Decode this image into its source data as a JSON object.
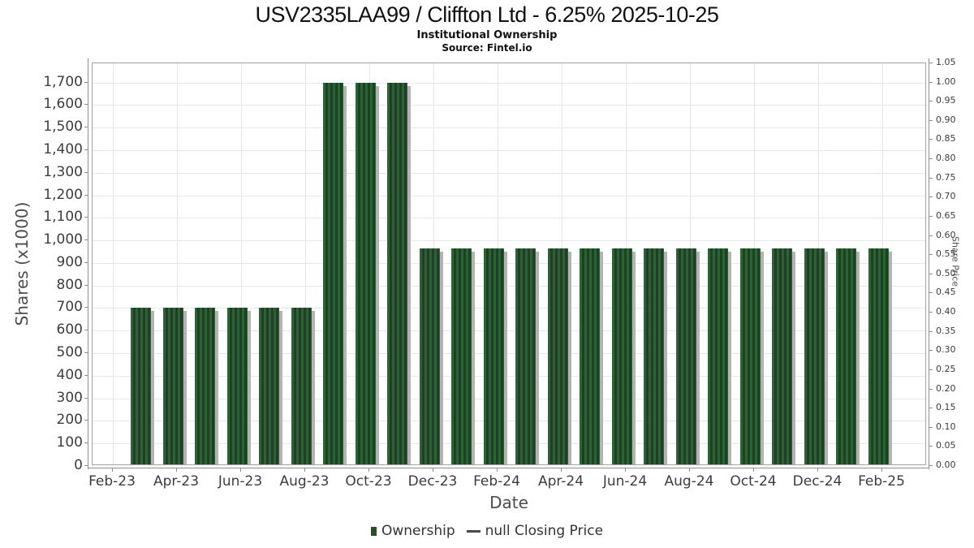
{
  "header": {
    "title": "USV2335LAA99 / Cliffton Ltd - 6.25% 2025-10-25",
    "subtitle": "Institutional Ownership",
    "source": "Source: Fintel.io"
  },
  "chart_data": {
    "type": "bar",
    "title": "USV2335LAA99 / Cliffton Ltd - 6.25% 2025-10-25",
    "subtitle": "Institutional Ownership",
    "source": "Source: Fintel.io",
    "categories": [
      "Mar-23",
      "Apr-23",
      "May-23",
      "Jun-23",
      "Jul-23",
      "Aug-23",
      "Sep-23",
      "Oct-23",
      "Nov-23",
      "Dec-23",
      "Jan-24",
      "Feb-24",
      "Mar-24",
      "Apr-24",
      "May-24",
      "Jun-24",
      "Jul-24",
      "Aug-24",
      "Sep-24",
      "Oct-24",
      "Nov-24",
      "Dec-24",
      "Jan-25",
      "Feb-25"
    ],
    "values": [
      700,
      700,
      700,
      700,
      700,
      700,
      1700,
      1700,
      1700,
      966,
      966,
      966,
      966,
      966,
      966,
      966,
      966,
      966,
      966,
      966,
      966,
      966,
      966,
      966
    ],
    "series_name": "Ownership",
    "x_axis": {
      "label": "Date",
      "tick_labels": [
        "Feb-23",
        "Apr-23",
        "Jun-23",
        "Aug-23",
        "Oct-23",
        "Dec-23",
        "Feb-24",
        "Apr-24",
        "Jun-24",
        "Aug-24",
        "Oct-24",
        "Dec-24",
        "Feb-25"
      ],
      "tick_every": 2
    },
    "y_axis_left": {
      "label": "Shares (x1000)",
      "tick_labels": [
        "0",
        "100",
        "200",
        "300",
        "400",
        "500",
        "600",
        "700",
        "800",
        "900",
        "1,000",
        "1,100",
        "1,200",
        "1,300",
        "1,400",
        "1,500",
        "1,600",
        "1,700"
      ],
      "tick_step": 100,
      "max": 1785
    },
    "y_axis_right": {
      "label": "Share Price",
      "tick_labels": [
        "0.00",
        "0.05",
        "0.10",
        "0.15",
        "0.20",
        "0.25",
        "0.30",
        "0.35",
        "0.40",
        "0.45",
        "0.50",
        "0.55",
        "0.60",
        "0.65",
        "0.70",
        "0.75",
        "0.80",
        "0.85",
        "0.90",
        "0.95",
        "1.00",
        "1.05"
      ],
      "tick_step": 0.05,
      "max": 1.05
    },
    "grid": true,
    "legend_position": "bottom",
    "bar_color_light": "#2f6136",
    "bar_color_dark": "#1d4123",
    "bar_shadow_color": "#b3b3b3",
    "gridline_color": "#e6e6e6"
  },
  "legend": {
    "items": [
      {
        "label": "Ownership",
        "marker": "square",
        "color": "#24512c"
      },
      {
        "label": "null Closing Price",
        "marker": "dash",
        "color": "#4a4a4a"
      }
    ]
  }
}
